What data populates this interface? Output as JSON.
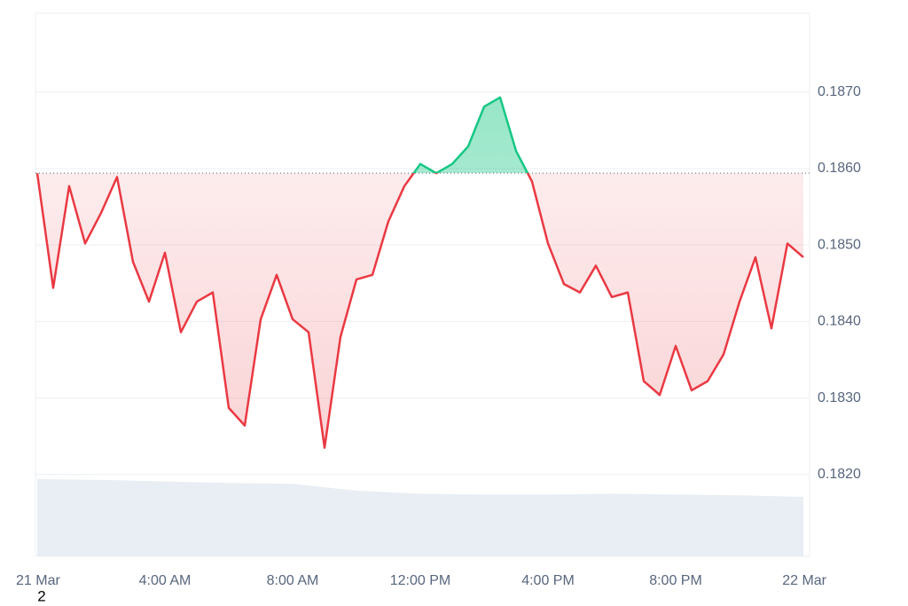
{
  "chart_data": {
    "type": "line",
    "x": [
      0,
      0.5,
      1,
      1.5,
      2,
      2.5,
      3,
      3.5,
      4,
      4.5,
      5,
      5.5,
      6,
      6.5,
      7,
      7.5,
      8,
      8.5,
      9,
      9.5,
      10,
      10.5,
      11,
      11.5,
      12,
      12.5,
      13,
      13.5,
      14,
      14.5,
      15,
      15.5,
      16,
      16.5,
      17,
      17.5,
      18,
      18.5,
      19,
      19.5,
      20,
      20.5,
      21,
      21.5,
      22,
      22.5,
      23,
      23.5,
      24
    ],
    "series": [
      {
        "values": [
          0.18594,
          0.18444,
          0.18577,
          0.18502,
          0.18542,
          0.18589,
          0.18478,
          0.18426,
          0.1849,
          0.18386,
          0.18426,
          0.18438,
          0.18287,
          0.18264,
          0.18403,
          0.18461,
          0.18403,
          0.18386,
          0.18235,
          0.1838,
          0.18455,
          0.18461,
          0.18531,
          0.18577,
          0.18606,
          0.18594,
          0.18606,
          0.18629,
          0.18681,
          0.18693,
          0.18623,
          0.18583,
          0.18502,
          0.18449,
          0.18438,
          0.18473,
          0.18432,
          0.18438,
          0.18322,
          0.18304,
          0.18368,
          0.1831,
          0.18322,
          0.18357,
          0.18426,
          0.18484,
          0.18391,
          0.18502,
          0.18484
        ]
      }
    ],
    "baseline": 0.18594,
    "up_color": "#16c784",
    "down_color": "#ea3943",
    "volume": {
      "x": [
        0,
        2,
        4,
        6,
        8,
        10,
        12,
        14,
        16,
        18,
        20,
        22,
        24
      ],
      "values": [
        100,
        99,
        97,
        95,
        94,
        85,
        81,
        80,
        80,
        81,
        80,
        79,
        77
      ],
      "ylim": [
        0,
        100
      ],
      "color": "#e8eef3"
    },
    "xlim": [
      0,
      24
    ],
    "xticks": [
      {
        "value": 0,
        "label": "21 Mar"
      },
      {
        "value": 4,
        "label": "4:00 AM"
      },
      {
        "value": 8,
        "label": "8:00 AM"
      },
      {
        "value": 12,
        "label": "12:00 PM"
      },
      {
        "value": 16,
        "label": "4:00 PM"
      },
      {
        "value": 20,
        "label": "8:00 PM"
      },
      {
        "value": 24,
        "label": "22 Mar"
      }
    ],
    "ylim": [
      0.18093,
      0.18803
    ],
    "yticks": [
      {
        "value": 0.182,
        "label": "0.1820"
      },
      {
        "value": 0.183,
        "label": "0.1830"
      },
      {
        "value": 0.184,
        "label": "0.1840"
      },
      {
        "value": 0.185,
        "label": "0.1850"
      },
      {
        "value": 0.186,
        "label": "0.1860"
      },
      {
        "value": 0.187,
        "label": "0.1870"
      }
    ],
    "grid": true,
    "footnote": "2"
  }
}
